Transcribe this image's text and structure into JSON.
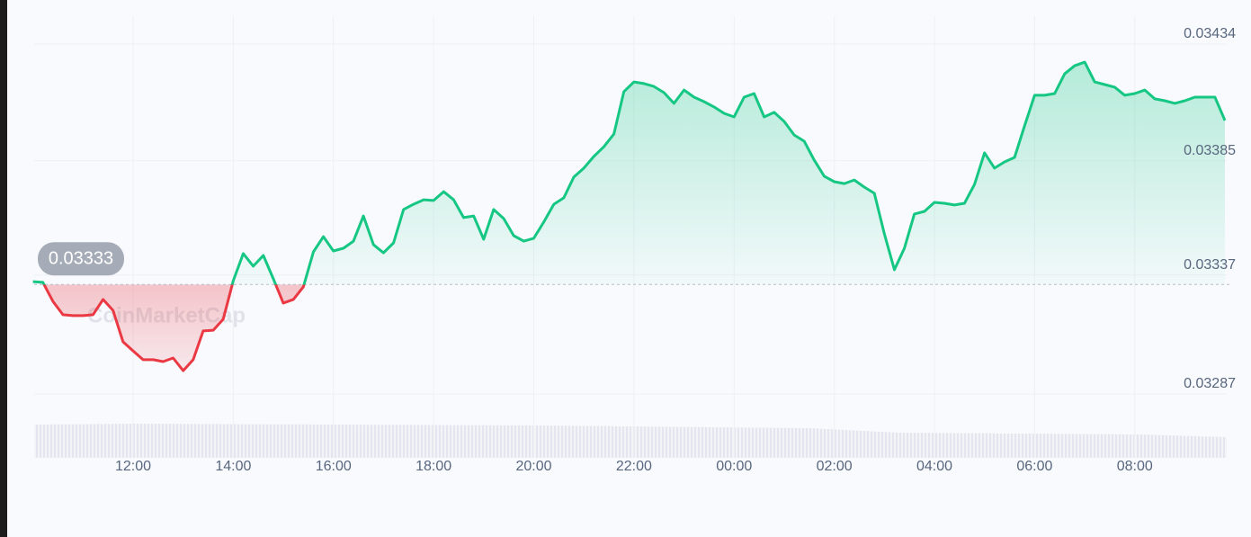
{
  "chart_data": {
    "type": "line",
    "watermark": "CoinMarketCap",
    "reference_value": 0.03333,
    "up_color": "#16c784",
    "down_color": "#ea3943",
    "grid": true,
    "xlim": [
      10,
      33.8
    ],
    "ylim": [
      0.03287,
      0.03434
    ],
    "yticks": [
      0.03287,
      0.03337,
      0.03385,
      0.03434
    ],
    "xticks": [
      {
        "value": 12,
        "label": "12:00"
      },
      {
        "value": 14,
        "label": "14:00"
      },
      {
        "value": 16,
        "label": "16:00"
      },
      {
        "value": 18,
        "label": "18:00"
      },
      {
        "value": 20,
        "label": "20:00"
      },
      {
        "value": 22,
        "label": "22:00"
      },
      {
        "value": 24,
        "label": "00:00"
      },
      {
        "value": 26,
        "label": "02:00"
      },
      {
        "value": 28,
        "label": "04:00"
      },
      {
        "value": 30,
        "label": "06:00"
      },
      {
        "value": 32,
        "label": "08:00"
      }
    ],
    "x": [
      10,
      10.2,
      10.4,
      10.6,
      10.8,
      11,
      11.2,
      11.4,
      11.6,
      11.8,
      12,
      12.2,
      12.4,
      12.6,
      12.8,
      13,
      13.2,
      13.4,
      13.6,
      13.8,
      14,
      14.2,
      14.4,
      14.6,
      14.8,
      15,
      15.2,
      15.4,
      15.6,
      15.8,
      16,
      16.2,
      16.4,
      16.6,
      16.8,
      17,
      17.2,
      17.4,
      17.6,
      17.8,
      18,
      18.2,
      18.4,
      18.6,
      18.8,
      19,
      19.2,
      19.4,
      19.6,
      19.8,
      20,
      20.2,
      20.4,
      20.6,
      20.8,
      21,
      21.2,
      21.4,
      21.6,
      21.8,
      22,
      22.2,
      22.4,
      22.6,
      22.8,
      23,
      23.2,
      23.4,
      23.6,
      23.8,
      24,
      24.2,
      24.4,
      24.6,
      24.8,
      25,
      25.2,
      25.4,
      25.6,
      25.8,
      26,
      26.2,
      26.4,
      26.6,
      26.8,
      27,
      27.2,
      27.4,
      27.6,
      27.8,
      28,
      28.2,
      28.4,
      28.6,
      28.8,
      29,
      29.2,
      29.4,
      29.6,
      29.8,
      30,
      30.2,
      30.4,
      30.6,
      30.8,
      31,
      31.2,
      31.4,
      31.6,
      31.8,
      32,
      32.2,
      32.4,
      32.6,
      32.8,
      33,
      33.2,
      33.4,
      33.6,
      33.8
    ],
    "values": [
      0.033342,
      0.033339,
      0.033259,
      0.033203,
      0.033199,
      0.033199,
      0.033203,
      0.033267,
      0.033221,
      0.033089,
      0.033051,
      0.033014,
      0.033014,
      0.033006,
      0.033021,
      0.032968,
      0.033014,
      0.033135,
      0.033138,
      0.033184,
      0.033346,
      0.03346,
      0.033407,
      0.033452,
      0.033354,
      0.033252,
      0.033267,
      0.03332,
      0.033467,
      0.033531,
      0.033471,
      0.033482,
      0.033512,
      0.033618,
      0.033497,
      0.033463,
      0.033505,
      0.033645,
      0.033667,
      0.033686,
      0.033683,
      0.03372,
      0.033686,
      0.033611,
      0.033618,
      0.03352,
      0.033645,
      0.033607,
      0.033535,
      0.033512,
      0.033524,
      0.033592,
      0.033667,
      0.033694,
      0.033781,
      0.033819,
      0.033868,
      0.033909,
      0.033962,
      0.03414,
      0.034181,
      0.034174,
      0.034162,
      0.034136,
      0.034091,
      0.034147,
      0.034117,
      0.034098,
      0.034076,
      0.034049,
      0.034034,
      0.034117,
      0.034132,
      0.034034,
      0.034053,
      0.034015,
      0.033958,
      0.033932,
      0.033853,
      0.033785,
      0.033762,
      0.033754,
      0.033769,
      0.033739,
      0.033713,
      0.033543,
      0.033392,
      0.033482,
      0.033626,
      0.033637,
      0.033675,
      0.033671,
      0.033664,
      0.033671,
      0.033751,
      0.033883,
      0.033819,
      0.033845,
      0.033864,
      0.033996,
      0.034125,
      0.034125,
      0.034132,
      0.034215,
      0.034249,
      0.034264,
      0.034181,
      0.03417,
      0.034159,
      0.034125,
      0.034132,
      0.034147,
      0.03411,
      0.034102,
      0.034091,
      0.034102,
      0.034117,
      0.034117,
      0.034117,
      0.034019
    ]
  }
}
